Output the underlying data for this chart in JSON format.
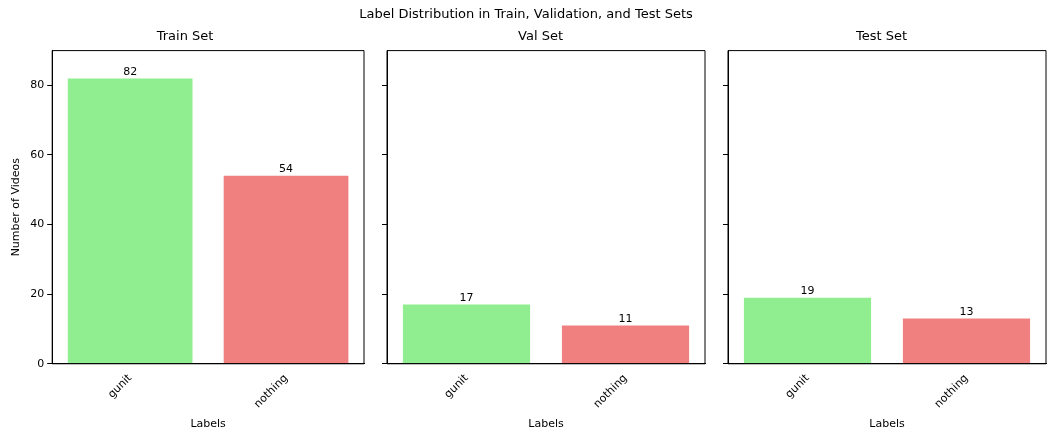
{
  "chart_data": [
    {
      "type": "bar",
      "title": "Train Set",
      "annotations": [
        "Label Distribution in Train, Validation, and Test Sets"
      ],
      "xlabel": "Labels",
      "ylabel": "Number of Videos",
      "categories": [
        "gunit",
        "nothing"
      ],
      "values": [
        82,
        54
      ],
      "colors": [
        "#90ee90",
        "#f08080"
      ],
      "ylim": [
        0,
        90
      ],
      "yticks": [
        0,
        20,
        40,
        60,
        80
      ],
      "grid": false,
      "data_labels": true
    },
    {
      "type": "bar",
      "title": "Val Set",
      "xlabel": "Labels",
      "categories": [
        "gunit",
        "nothing"
      ],
      "values": [
        17,
        11
      ],
      "colors": [
        "#90ee90",
        "#f08080"
      ],
      "ylim": [
        0,
        90
      ],
      "yticks": [
        {
          "value": 0,
          "label": null
        },
        {
          "value": 20,
          "label": null
        },
        {
          "value": 40,
          "label": null
        },
        {
          "value": 60,
          "label": null
        },
        {
          "value": 80,
          "label": null
        }
      ],
      "grid": false,
      "data_labels": true,
      "tick_labels": "x"
    },
    {
      "type": "bar",
      "title": "Test Set",
      "xlabel": "Labels",
      "categories": [
        "gunit",
        "nothing"
      ],
      "values": [
        19,
        13
      ],
      "colors": [
        "#90ee90",
        "#f08080"
      ],
      "ylim": [
        0,
        90
      ],
      "yticks": [
        {
          "value": 0,
          "label": null
        },
        {
          "value": 20,
          "label": null
        },
        {
          "value": 40,
          "label": null
        },
        {
          "value": 60,
          "label": null
        },
        {
          "value": 80,
          "label": null
        }
      ],
      "grid": false,
      "data_labels": true,
      "tick_labels": "x"
    }
  ]
}
